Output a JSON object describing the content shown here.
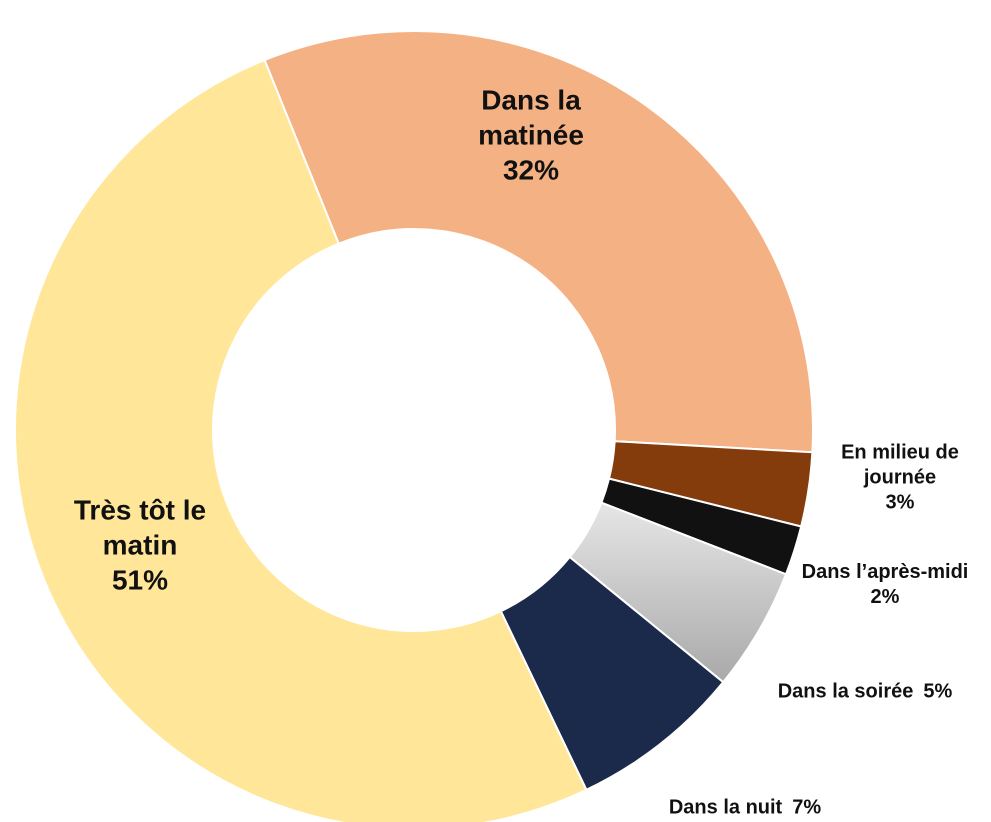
{
  "chart_data": {
    "type": "donut",
    "categories": [
      "Dans la matinée",
      "En milieu de journée",
      "Dans l’après-midi",
      "Dans la soirée",
      "Dans la nuit",
      "Très tôt le matin"
    ],
    "values": [
      32,
      3,
      2,
      5,
      7,
      51
    ],
    "value_labels": [
      "32%",
      "3%",
      "2%",
      "5%",
      "7%",
      "51%"
    ],
    "colors": [
      "#F4B183",
      "#843C0C",
      "#111111",
      "#C9C9C9",
      "#1B2A4A",
      "#FFE699"
    ]
  }
}
